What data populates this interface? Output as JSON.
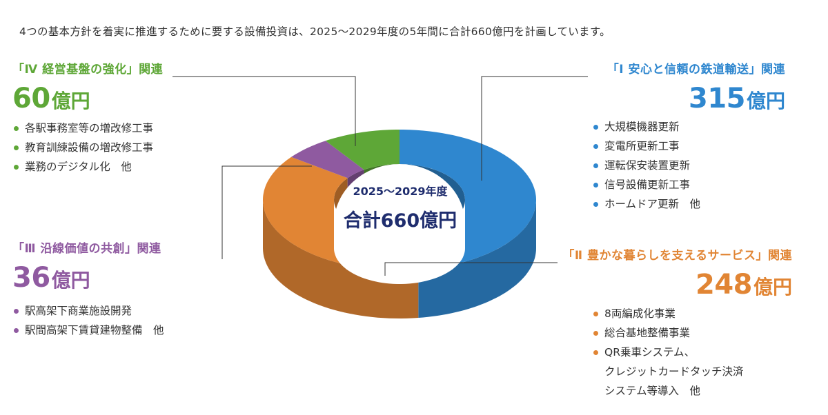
{
  "intro": "4つの基本方針を着実に推進するために要する設備投資は、2025～2029年度の5年間に合計660億円を計画しています。",
  "center": {
    "period": "2025～2029年度",
    "total": "合計660億円"
  },
  "colors": {
    "blue": "#2f87cf",
    "orange": "#e18534",
    "purple": "#8f5aa0",
    "green": "#5ea737",
    "navy": "#1f2d6e"
  },
  "categories": [
    {
      "key": "safety",
      "title": "「Ⅰ 安心と信頼の鉄道輸送」関連",
      "amount": "315",
      "unit": "億円",
      "color": "#2f87cf",
      "items": [
        "大規模機器更新",
        "変電所更新工事",
        "運転保安装置更新",
        "信号設備更新工事",
        "ホームドア更新　他"
      ]
    },
    {
      "key": "service",
      "title": "「Ⅱ 豊かな暮らしを支えるサービス」関連",
      "amount": "248",
      "unit": "億円",
      "color": "#e18534",
      "items": [
        "8両編成化事業",
        "総合基地整備事業",
        "QR乗車システム、"
      ],
      "continuation": [
        "クレジットカードタッチ決済",
        "システム等導入　他"
      ]
    },
    {
      "key": "line",
      "title": "「Ⅲ 沿線価値の共創」関連",
      "amount": "36",
      "unit": "億円",
      "color": "#8f5aa0",
      "items": [
        "駅高架下商業施設開発",
        "駅間高架下賃貸建物整備　他"
      ]
    },
    {
      "key": "mgmt",
      "title": "「Ⅳ 経営基盤の強化」関連",
      "amount": "60",
      "unit": "億円",
      "color": "#5ea737",
      "items": [
        "各駅事務室等の増改修工事",
        "教育訓練設備の増改修工事",
        "業務のデジタル化　他"
      ]
    }
  ],
  "chart_data": {
    "type": "pie",
    "title": "2025～2029年度　合計660億円",
    "unit": "億円",
    "categories": [
      "Ⅰ 安心と信頼の鉄道輸送",
      "Ⅱ 豊かな暮らしを支えるサービス",
      "Ⅲ 沿線価値の共創",
      "Ⅳ 経営基盤の強化"
    ],
    "values": [
      315,
      248,
      36,
      60
    ],
    "colors": [
      "#2f87cf",
      "#e18534",
      "#8f5aa0",
      "#5ea737"
    ],
    "total": 660
  }
}
